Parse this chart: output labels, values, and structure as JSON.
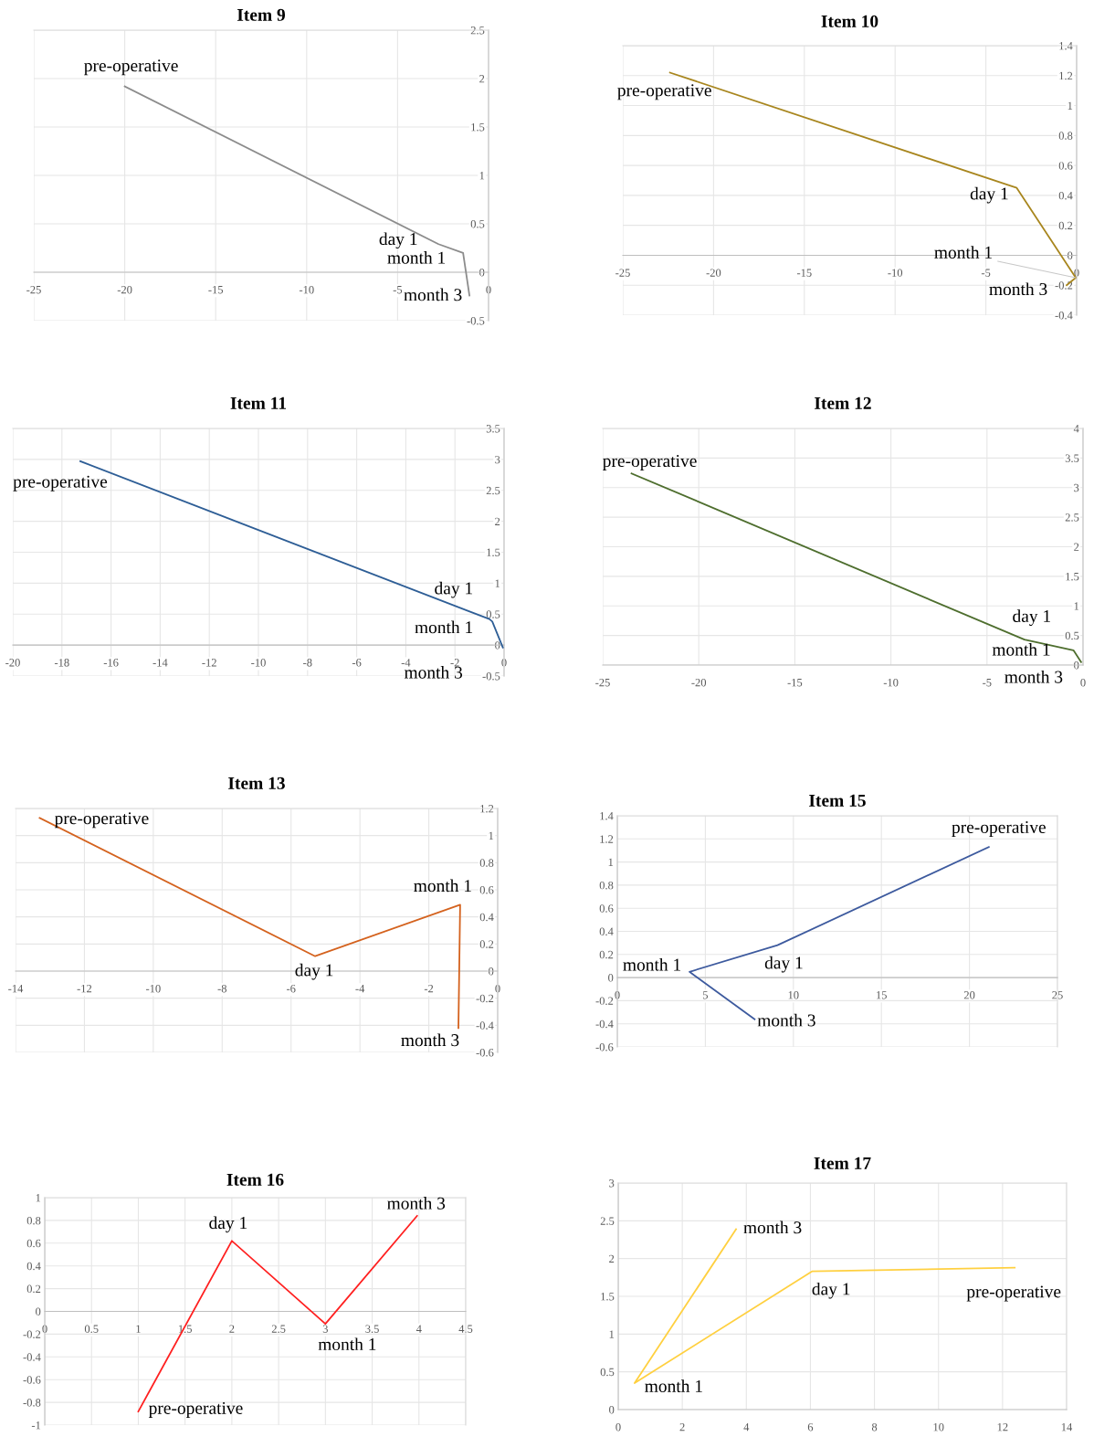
{
  "chart_data": [
    {
      "type": "line",
      "title": "Item 9",
      "x": [
        -20,
        -2.75,
        -1.4,
        -1.05
      ],
      "series": [
        {
          "color": "#8c8c8c",
          "values": [
            1.92,
            0.29,
            0.2,
            -0.24
          ]
        }
      ],
      "xlim": [
        -25,
        0
      ],
      "ylim": [
        -0.5,
        2.5
      ],
      "xticks": [
        -25,
        -20,
        -15,
        -10,
        -5,
        0
      ],
      "yticks": [
        -0.5,
        0,
        0.5,
        1,
        1.5,
        2,
        2.5
      ],
      "grid": true,
      "annotations": [
        {
          "text": "pre-operative",
          "x": -20,
          "y": 1.92
        },
        {
          "text": "day 1",
          "x": -2.75,
          "y": 0.29
        },
        {
          "text": "month 1",
          "x": -1.4,
          "y": 0.2
        },
        {
          "text": "month 3",
          "x": -1.05,
          "y": -0.24
        }
      ]
    },
    {
      "type": "line",
      "title": "Item 10",
      "x": [
        -22.4,
        -3.3,
        -0.05,
        -0.55
      ],
      "series": [
        {
          "color": "#a8861e",
          "values": [
            1.22,
            0.45,
            -0.15,
            -0.2
          ]
        }
      ],
      "xlim": [
        -25,
        0
      ],
      "ylim": [
        -0.4,
        1.4
      ],
      "xticks": [
        -25,
        -20,
        -15,
        -10,
        -5,
        0
      ],
      "yticks": [
        -0.4,
        -0.2,
        0,
        0.2,
        0.4,
        0.6,
        0.8,
        1,
        1.2,
        1.4
      ],
      "grid": true,
      "annotations": [
        {
          "text": "pre-operative",
          "x": -22.4,
          "y": 1.22
        },
        {
          "text": "day 1",
          "x": -3.3,
          "y": 0.45
        },
        {
          "text": "month 1",
          "x": -0.05,
          "y": -0.15
        },
        {
          "text": "month 3",
          "x": -0.55,
          "y": -0.2
        }
      ]
    },
    {
      "type": "line",
      "title": "Item 11",
      "x": [
        -17.25,
        -0.6,
        -0.48,
        -0.05
      ],
      "series": [
        {
          "color": "#2e5e96",
          "values": [
            2.97,
            0.42,
            0.38,
            -0.04
          ]
        }
      ],
      "xlim": [
        -20,
        0
      ],
      "ylim": [
        -0.5,
        3.5
      ],
      "xticks": [
        -20,
        -18,
        -16,
        -14,
        -12,
        -10,
        -8,
        -6,
        -4,
        -2,
        0
      ],
      "yticks": [
        -0.5,
        0,
        0.5,
        1,
        1.5,
        2,
        2.5,
        3,
        3.5
      ],
      "grid": true,
      "annotations": [
        {
          "text": "pre-operative",
          "x": -17.25,
          "y": 2.97
        },
        {
          "text": "day 1",
          "x": -0.6,
          "y": 0.42
        },
        {
          "text": "month 1",
          "x": -0.48,
          "y": 0.38
        },
        {
          "text": "month 3",
          "x": -0.05,
          "y": -0.04
        }
      ]
    },
    {
      "type": "line",
      "title": "Item 12",
      "x": [
        -23.5,
        -3.05,
        -0.5,
        -0.1
      ],
      "series": [
        {
          "color": "#4e6e2e",
          "values": [
            3.24,
            0.43,
            0.25,
            0.05
          ]
        }
      ],
      "xlim": [
        -25,
        0
      ],
      "ylim": [
        0,
        4
      ],
      "xticks": [
        -25,
        -20,
        -15,
        -10,
        -5,
        0
      ],
      "yticks": [
        0,
        0.5,
        1,
        1.5,
        2,
        2.5,
        3,
        3.5,
        4
      ],
      "grid": true,
      "annotations": [
        {
          "text": "pre-operative",
          "x": -23.5,
          "y": 3.24
        },
        {
          "text": "day 1",
          "x": -3.05,
          "y": 0.43
        },
        {
          "text": "month 1",
          "x": -0.5,
          "y": 0.25
        },
        {
          "text": "month 3",
          "x": -0.1,
          "y": 0.05
        }
      ]
    },
    {
      "type": "line",
      "title": "Item 13",
      "x": [
        -13.3,
        -5.3,
        -1.09,
        -1.14
      ],
      "series": [
        {
          "color": "#d4621e",
          "values": [
            1.13,
            0.11,
            0.49,
            -0.42
          ]
        }
      ],
      "xlim": [
        -14,
        0
      ],
      "ylim": [
        -0.6,
        1.2
      ],
      "xticks": [
        -14,
        -12,
        -10,
        -8,
        -6,
        -4,
        -2,
        0
      ],
      "yticks": [
        -0.6,
        -0.4,
        -0.2,
        0,
        0.2,
        0.4,
        0.6,
        0.8,
        1,
        1.2
      ],
      "grid": true,
      "annotations": [
        {
          "text": "pre-operative",
          "x": -13.3,
          "y": 1.13
        },
        {
          "text": "day 1",
          "x": -5.3,
          "y": 0.11
        },
        {
          "text": "month 1",
          "x": -1.09,
          "y": 0.49
        },
        {
          "text": "month 3",
          "x": -1.14,
          "y": -0.42
        }
      ]
    },
    {
      "type": "line",
      "title": "Item 15",
      "x": [
        21.1,
        9.1,
        4.1,
        7.8
      ],
      "series": [
        {
          "color": "#3d5a9e",
          "values": [
            1.13,
            0.28,
            0.05,
            -0.36
          ]
        }
      ],
      "xlim": [
        0,
        25
      ],
      "ylim": [
        -0.6,
        1.4
      ],
      "xticks": [
        0,
        5,
        10,
        15,
        20,
        25
      ],
      "yticks": [
        -0.6,
        -0.4,
        -0.2,
        0,
        0.2,
        0.4,
        0.6,
        0.8,
        1,
        1.2,
        1.4
      ],
      "grid": true,
      "annotations": [
        {
          "text": "pre-operative",
          "x": 21.1,
          "y": 1.13
        },
        {
          "text": "day 1",
          "x": 9.1,
          "y": 0.28
        },
        {
          "text": "month 1",
          "x": 4.1,
          "y": 0.05
        },
        {
          "text": "month 3",
          "x": 7.8,
          "y": -0.36
        }
      ]
    },
    {
      "type": "line",
      "title": "Item 16",
      "x": [
        1.0,
        2.0,
        3.0,
        3.98
      ],
      "series": [
        {
          "color": "#ff2020",
          "values": [
            -0.88,
            0.62,
            -0.11,
            0.84
          ]
        }
      ],
      "xlim": [
        0,
        4.5
      ],
      "ylim": [
        -1,
        1
      ],
      "xticks": [
        0,
        0.5,
        1,
        1.5,
        2,
        2.5,
        3,
        3.5,
        4,
        4.5
      ],
      "yticks": [
        -1,
        -0.8,
        -0.6,
        -0.4,
        -0.2,
        0,
        0.2,
        0.4,
        0.6,
        0.8,
        1
      ],
      "grid": true,
      "annotations": [
        {
          "text": "pre-operative",
          "x": 1.0,
          "y": -0.88
        },
        {
          "text": "day 1",
          "x": 2.0,
          "y": 0.62
        },
        {
          "text": "month 1",
          "x": 3.0,
          "y": -0.11
        },
        {
          "text": "month 3",
          "x": 3.98,
          "y": 0.84
        }
      ]
    },
    {
      "type": "line",
      "title": "Item 17",
      "x": [
        12.38,
        6.05,
        0.51,
        3.68
      ],
      "series": [
        {
          "color": "#ffd040",
          "values": [
            1.88,
            1.83,
            0.35,
            2.39
          ]
        }
      ],
      "xlim": [
        0,
        14
      ],
      "ylim": [
        0,
        3
      ],
      "xticks": [
        0,
        2,
        4,
        6,
        8,
        10,
        12,
        14
      ],
      "yticks": [
        0,
        0.5,
        1,
        1.5,
        2,
        2.5,
        3
      ],
      "grid": true,
      "annotations": [
        {
          "text": "pre-operative",
          "x": 12.38,
          "y": 1.88
        },
        {
          "text": "day 1",
          "x": 6.05,
          "y": 1.83
        },
        {
          "text": "month 1",
          "x": 0.51,
          "y": 0.35
        },
        {
          "text": "month 3",
          "x": 3.68,
          "y": 2.39
        }
      ]
    }
  ]
}
